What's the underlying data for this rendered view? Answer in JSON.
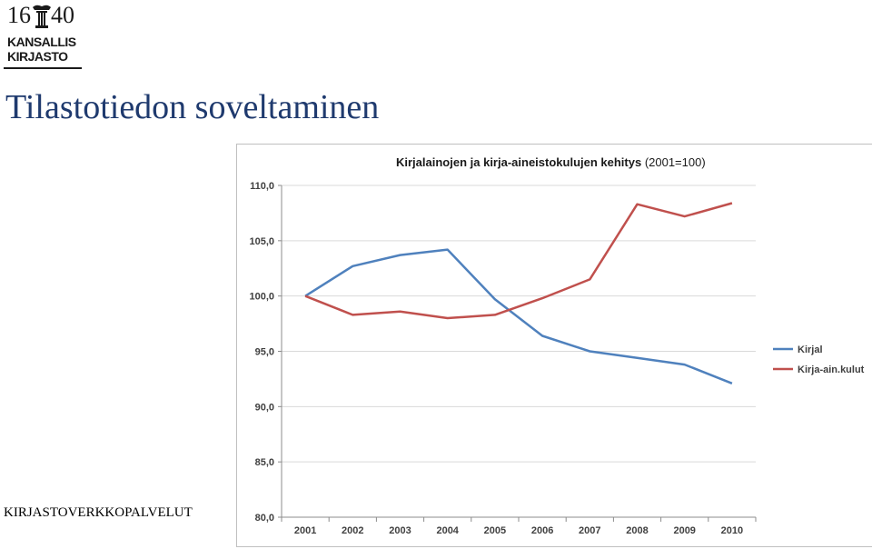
{
  "logo": {
    "year_left": "16",
    "year_right": "40",
    "line1": "KANSALLIS",
    "line2": "KIRJASTO"
  },
  "page": {
    "title": "Tilastotiedon soveltaminen",
    "footer": "KIRJASTOVERKKOPALVELUT"
  },
  "colors": {
    "title": "#1f3a6e",
    "series_blue": "#4f81bd",
    "series_red": "#c0504d",
    "grid": "#d9d9d9"
  },
  "chart_data": {
    "type": "line",
    "title_bold": "Kirjalainojen ja kirja-aineistokulujen kehitys",
    "title_normal": "(2001=100)",
    "xlabel": "",
    "ylabel": "",
    "categories": [
      "2001",
      "2002",
      "2003",
      "2004",
      "2005",
      "2006",
      "2007",
      "2008",
      "2009",
      "2010"
    ],
    "ylim": [
      80,
      110
    ],
    "yticks": [
      "80,0",
      "85,0",
      "90,0",
      "95,0",
      "100,0",
      "105,0",
      "110,0"
    ],
    "ytick_values": [
      80,
      85,
      90,
      95,
      100,
      105,
      110
    ],
    "grid": true,
    "legend_position": "right",
    "series": [
      {
        "name": "Kirjal",
        "color": "#4f81bd",
        "values": [
          100.0,
          102.7,
          103.7,
          104.2,
          99.7,
          96.4,
          95.0,
          94.4,
          93.8,
          92.1
        ]
      },
      {
        "name": "Kirja-ain.kulut",
        "color": "#c0504d",
        "values": [
          100.0,
          98.3,
          98.6,
          98.0,
          98.3,
          99.8,
          101.5,
          108.3,
          107.2,
          108.4
        ]
      }
    ]
  }
}
